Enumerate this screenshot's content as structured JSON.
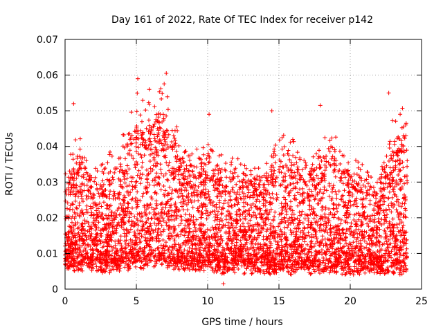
{
  "chart_data": {
    "type": "scatter",
    "title": "Day 161 of 2022, Rate Of TEC Index for receiver p142",
    "xlabel": "GPS time / hours",
    "ylabel": "ROTI / TECUs",
    "xlim": [
      0,
      25
    ],
    "ylim": [
      0,
      0.07
    ],
    "x_ticks": [
      0,
      5,
      10,
      15,
      20,
      25
    ],
    "y_ticks": [
      0,
      0.01,
      0.02,
      0.03,
      0.04,
      0.05,
      0.06,
      0.07
    ],
    "x_tick_labels": [
      "0",
      "5",
      "10",
      "15",
      "20",
      "25"
    ],
    "y_tick_labels": [
      "0",
      "0.01",
      "0.02",
      "0.03",
      "0.04",
      "0.05",
      "0.06",
      "0.07"
    ],
    "grid": true,
    "marker": "+",
    "color": "#ff0000",
    "envelope": {
      "description_hours": [
        0,
        1,
        2,
        3,
        4,
        5,
        6,
        7,
        8,
        9,
        10,
        11,
        12,
        13,
        14,
        15,
        16,
        17,
        18,
        19,
        20,
        21,
        22,
        23,
        24
      ],
      "upper": [
        0.031,
        0.042,
        0.03,
        0.034,
        0.04,
        0.053,
        0.052,
        0.055,
        0.04,
        0.036,
        0.04,
        0.035,
        0.034,
        0.033,
        0.033,
        0.04,
        0.04,
        0.034,
        0.042,
        0.04,
        0.034,
        0.033,
        0.028,
        0.045,
        0.048
      ],
      "lower": [
        0.005,
        0.005,
        0.005,
        0.004,
        0.005,
        0.005,
        0.006,
        0.006,
        0.005,
        0.005,
        0.005,
        0.004,
        0.004,
        0.004,
        0.004,
        0.004,
        0.004,
        0.004,
        0.004,
        0.004,
        0.004,
        0.004,
        0.004,
        0.004,
        0.004
      ]
    },
    "notable_points": [
      {
        "x": 0.6,
        "y": 0.052
      },
      {
        "x": 5.1,
        "y": 0.059
      },
      {
        "x": 5.9,
        "y": 0.056
      },
      {
        "x": 7.1,
        "y": 0.0605
      },
      {
        "x": 10.1,
        "y": 0.049
      },
      {
        "x": 11.1,
        "y": 0.0015
      },
      {
        "x": 14.5,
        "y": 0.05
      },
      {
        "x": 17.9,
        "y": 0.0515
      },
      {
        "x": 22.7,
        "y": 0.055
      },
      {
        "x": 23.5,
        "y": 0.049
      }
    ]
  }
}
